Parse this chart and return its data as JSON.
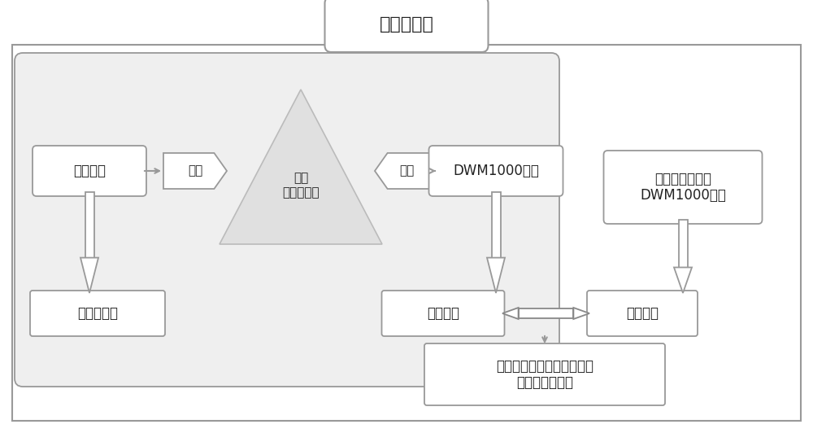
{
  "title": "硬件架构图",
  "bg_color": "#ffffff",
  "edge_color": "#999999",
  "inner_fill": "#efefef",
  "white": "#ffffff",
  "font_color": "#222222",
  "title_fontsize": 16,
  "main_fontsize": 12,
  "small_fontsize": 11,
  "compass_label": "电子罗盘",
  "embed1_label": "装入",
  "embed2_label": "装入",
  "robot_label": "自主\n移动机器人",
  "dwm_tag_label": "DWM1000模块",
  "dwm_base_label": "两片或两片以上\nDWM1000模块",
  "measure_label": "测量航向角",
  "tag_label": "作为标签",
  "base_label": "作为基站",
  "comm_label": "基站和标签相互通信，获得\n二者之间的距离"
}
